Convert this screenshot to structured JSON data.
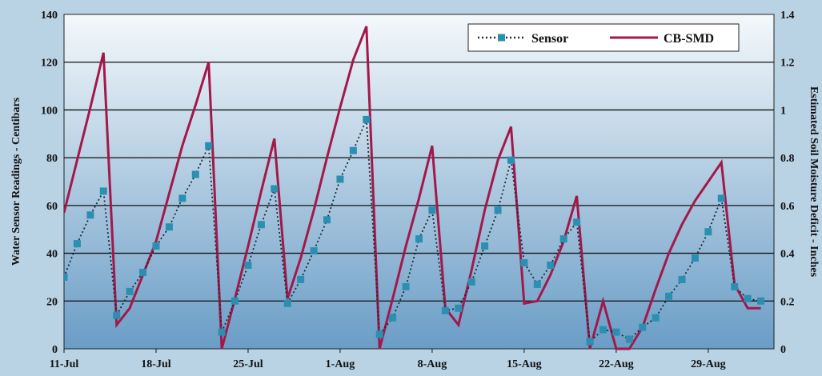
{
  "colors": {
    "sensor": "#2a8fb0",
    "cbsmd": "#a3184a",
    "grid": "#111111",
    "plot_top": "#f4f8fb",
    "plot_bottom": "#6a9dc6"
  },
  "chart_data": {
    "type": "line",
    "title": "",
    "xlabel": "",
    "ylabel": "Water Sensor Readings - Centibars",
    "y2label": "Estimated Soil Moisture Deficit - Inches",
    "x_tick_labels": [
      "11-Jul",
      "18-Jul",
      "25-Jul",
      "1-Aug",
      "8-Aug",
      "15-Aug",
      "22-Aug",
      "29-Aug"
    ],
    "x_tick_days": [
      0,
      7,
      14,
      21,
      28,
      35,
      42,
      49
    ],
    "xlim": [
      0,
      54
    ],
    "ylim": [
      0,
      140
    ],
    "y_ticks": [
      "0",
      "20",
      "40",
      "60",
      "80",
      "100",
      "120",
      "140"
    ],
    "y2lim": [
      0,
      1.4
    ],
    "y2_ticks": [
      "0",
      "0.2",
      "0.4",
      "0.6",
      "0.8",
      "1",
      "1.2",
      "1.4"
    ],
    "grid": "horizontal",
    "legend_position": "top-right",
    "series": [
      {
        "name": "Sensor",
        "axis": "left",
        "style": "dotted-square-markers",
        "x": [
          0,
          1,
          2,
          3,
          4,
          5,
          6,
          7,
          8,
          9,
          10,
          11,
          12,
          13,
          14,
          15,
          16,
          17,
          18,
          19,
          20,
          21,
          22,
          23,
          24,
          25,
          26,
          27,
          28,
          29,
          30,
          31,
          32,
          33,
          34,
          35,
          36,
          37,
          38,
          39,
          40,
          41,
          42,
          43,
          44,
          45,
          46,
          47,
          48,
          49,
          50,
          51,
          52,
          53
        ],
        "y": [
          30,
          44,
          56,
          66,
          14,
          24,
          32,
          43,
          51,
          63,
          73,
          85,
          7,
          20,
          35,
          52,
          67,
          19,
          29,
          41,
          54,
          71,
          83,
          96,
          6,
          13,
          26,
          46,
          58,
          16,
          17,
          28,
          43,
          58,
          79,
          36,
          27,
          35,
          46,
          53,
          3,
          8,
          7,
          4,
          9,
          13,
          22,
          29,
          38,
          49,
          63,
          26,
          21,
          20
        ]
      },
      {
        "name": "CB-SMD",
        "axis": "right",
        "style": "solid",
        "x": [
          0,
          1,
          2,
          3,
          4,
          5,
          6,
          7,
          8,
          9,
          10,
          11,
          12,
          13,
          14,
          15,
          16,
          17,
          18,
          19,
          20,
          21,
          22,
          23,
          24,
          25,
          26,
          27,
          28,
          29,
          30,
          31,
          32,
          33,
          34,
          35,
          36,
          37,
          38,
          39,
          40,
          41,
          42,
          43,
          44,
          45,
          46,
          47,
          48,
          49,
          50,
          51,
          52,
          53
        ],
        "y": [
          0.57,
          0.79,
          1.01,
          1.24,
          0.1,
          0.17,
          0.31,
          0.45,
          0.65,
          0.85,
          1.02,
          1.2,
          0.0,
          0.21,
          0.43,
          0.66,
          0.88,
          0.21,
          0.38,
          0.58,
          0.8,
          1.01,
          1.21,
          1.35,
          0.0,
          0.21,
          0.43,
          0.63,
          0.85,
          0.17,
          0.1,
          0.33,
          0.58,
          0.79,
          0.93,
          0.19,
          0.2,
          0.31,
          0.45,
          0.64,
          0.0,
          0.2,
          0.0,
          0.0,
          0.09,
          0.25,
          0.4,
          0.52,
          0.62,
          0.7,
          0.78,
          0.27,
          0.17,
          0.17
        ]
      }
    ]
  }
}
